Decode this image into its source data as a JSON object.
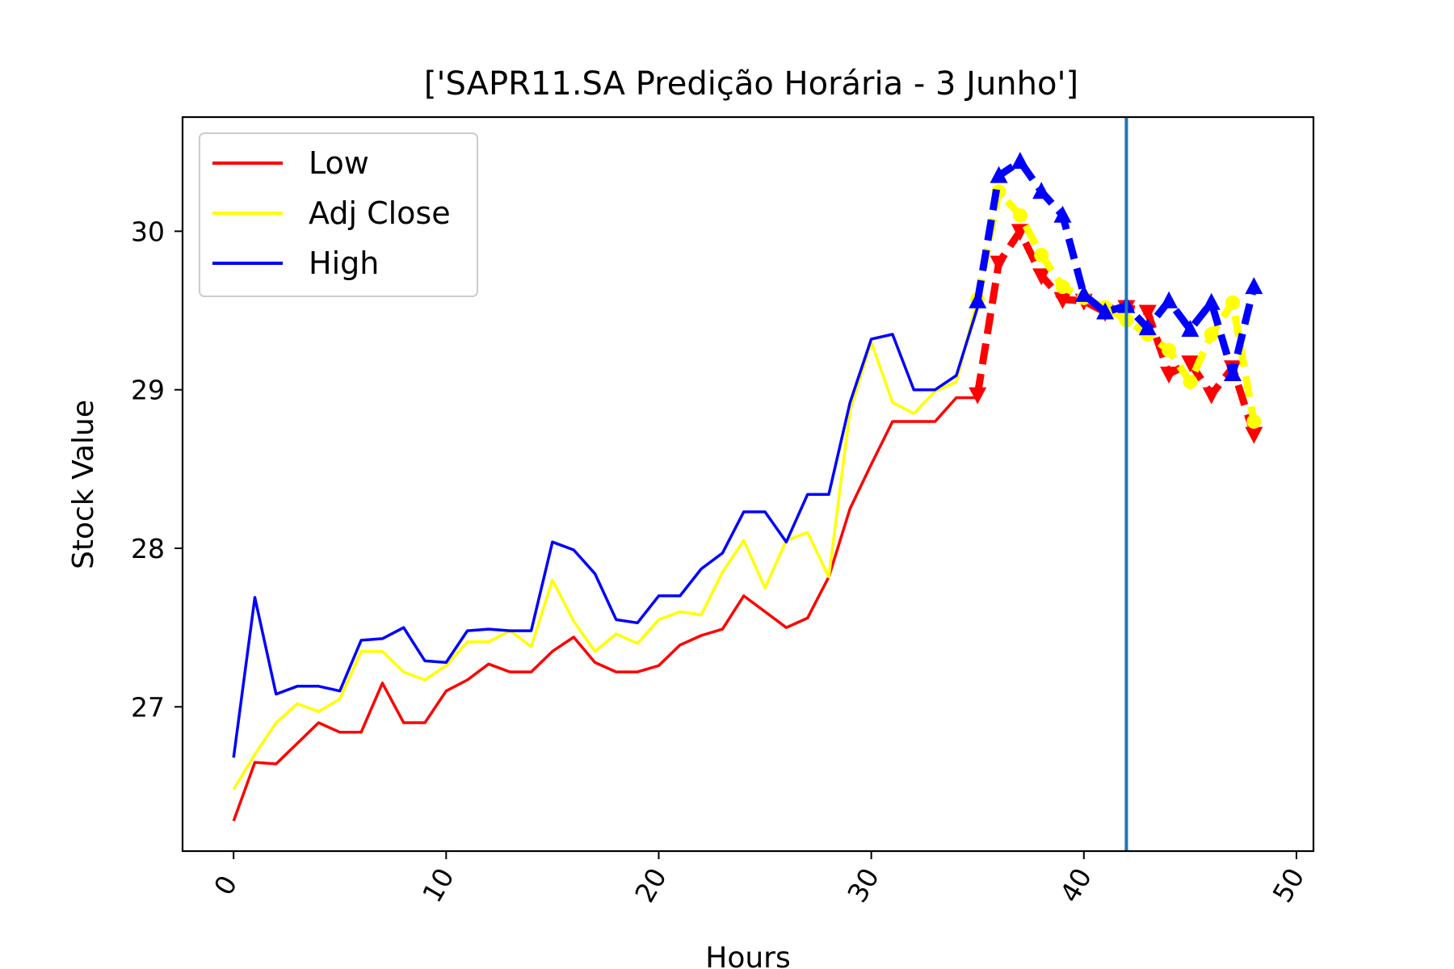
{
  "chart_data": {
    "type": "line",
    "title": "['SAPR11.SA Predição Horária - 3 Junho']",
    "xlabel": "Hours",
    "ylabel": "Stock Value",
    "xlim": [
      -2.4,
      50.8
    ],
    "ylim": [
      26.09,
      30.72
    ],
    "xticks": [
      0,
      10,
      20,
      30,
      40,
      50
    ],
    "yticks": [
      27,
      28,
      29,
      30
    ],
    "grid": false,
    "legend_position": "top-left",
    "vline_x": 42,
    "vline_color": "#1f77b4",
    "series": [
      {
        "name": "Low",
        "color": "#ff0000",
        "x": [
          0,
          1,
          2,
          3,
          4,
          5,
          6,
          7,
          8,
          9,
          10,
          11,
          12,
          13,
          14,
          15,
          16,
          17,
          18,
          19,
          20,
          21,
          22,
          23,
          24,
          25,
          26,
          27,
          28,
          29,
          30,
          31,
          32,
          33,
          34,
          35
        ],
        "values": [
          26.28,
          26.65,
          26.64,
          26.77,
          26.9,
          26.84,
          26.84,
          27.15,
          26.9,
          26.9,
          27.1,
          27.17,
          27.27,
          27.22,
          27.22,
          27.35,
          27.44,
          27.28,
          27.22,
          27.22,
          27.26,
          27.39,
          27.45,
          27.49,
          27.7,
          27.6,
          27.5,
          27.56,
          27.82,
          28.25,
          28.53,
          28.8,
          28.8,
          28.8,
          28.95,
          28.95
        ],
        "pred_x": [
          35,
          36,
          37,
          38,
          39,
          40,
          41,
          42,
          43,
          44,
          45,
          46,
          47,
          48
        ],
        "pred_values": [
          28.97,
          29.8,
          30.0,
          29.72,
          29.57,
          29.56,
          29.49,
          29.52,
          29.49,
          29.1,
          29.17,
          28.97,
          29.14,
          28.72
        ],
        "marker": "down-triangle"
      },
      {
        "name": "Adj Close",
        "color": "#ffff00",
        "x": [
          0,
          1,
          2,
          3,
          4,
          5,
          6,
          7,
          8,
          9,
          10,
          11,
          12,
          13,
          14,
          15,
          16,
          17,
          18,
          19,
          20,
          21,
          22,
          23,
          24,
          25,
          26,
          27,
          28,
          29,
          30,
          31,
          32,
          33,
          34,
          35
        ],
        "values": [
          26.48,
          26.7,
          26.9,
          27.02,
          26.97,
          27.05,
          27.35,
          27.35,
          27.22,
          27.17,
          27.26,
          27.41,
          27.41,
          27.48,
          27.38,
          27.8,
          27.54,
          27.35,
          27.46,
          27.4,
          27.55,
          27.6,
          27.58,
          27.85,
          28.05,
          27.75,
          28.05,
          28.1,
          27.82,
          28.87,
          29.3,
          28.92,
          28.85,
          28.99,
          29.05,
          29.57
        ],
        "pred_x": [
          35,
          36,
          37,
          38,
          39,
          40,
          41,
          42,
          43,
          44,
          45,
          46,
          47,
          48
        ],
        "pred_values": [
          29.57,
          30.25,
          30.1,
          29.85,
          29.65,
          29.58,
          29.52,
          29.44,
          29.35,
          29.25,
          29.05,
          29.35,
          29.55,
          28.8
        ],
        "marker": "circle"
      },
      {
        "name": "High",
        "color": "#0000ff",
        "x": [
          0,
          1,
          2,
          3,
          4,
          5,
          6,
          7,
          8,
          9,
          10,
          11,
          12,
          13,
          14,
          15,
          16,
          17,
          18,
          19,
          20,
          21,
          22,
          23,
          24,
          25,
          26,
          27,
          28,
          29,
          30,
          31,
          32,
          33,
          34,
          35
        ],
        "values": [
          26.68,
          27.69,
          27.08,
          27.13,
          27.13,
          27.1,
          27.42,
          27.43,
          27.5,
          27.29,
          27.28,
          27.48,
          27.49,
          27.48,
          27.48,
          28.04,
          27.99,
          27.84,
          27.55,
          27.53,
          27.7,
          27.7,
          27.87,
          27.97,
          28.23,
          28.23,
          28.04,
          28.34,
          28.34,
          28.92,
          29.32,
          29.35,
          29.0,
          29.0,
          29.09,
          29.52
        ],
        "pred_x": [
          35,
          36,
          37,
          38,
          39,
          40,
          41,
          42,
          43,
          44,
          45,
          46,
          47,
          48
        ],
        "pred_values": [
          29.56,
          30.35,
          30.44,
          30.25,
          30.1,
          29.6,
          29.49,
          29.53,
          29.39,
          29.56,
          29.38,
          29.55,
          29.1,
          29.65
        ],
        "marker": "up-triangle"
      }
    ]
  }
}
